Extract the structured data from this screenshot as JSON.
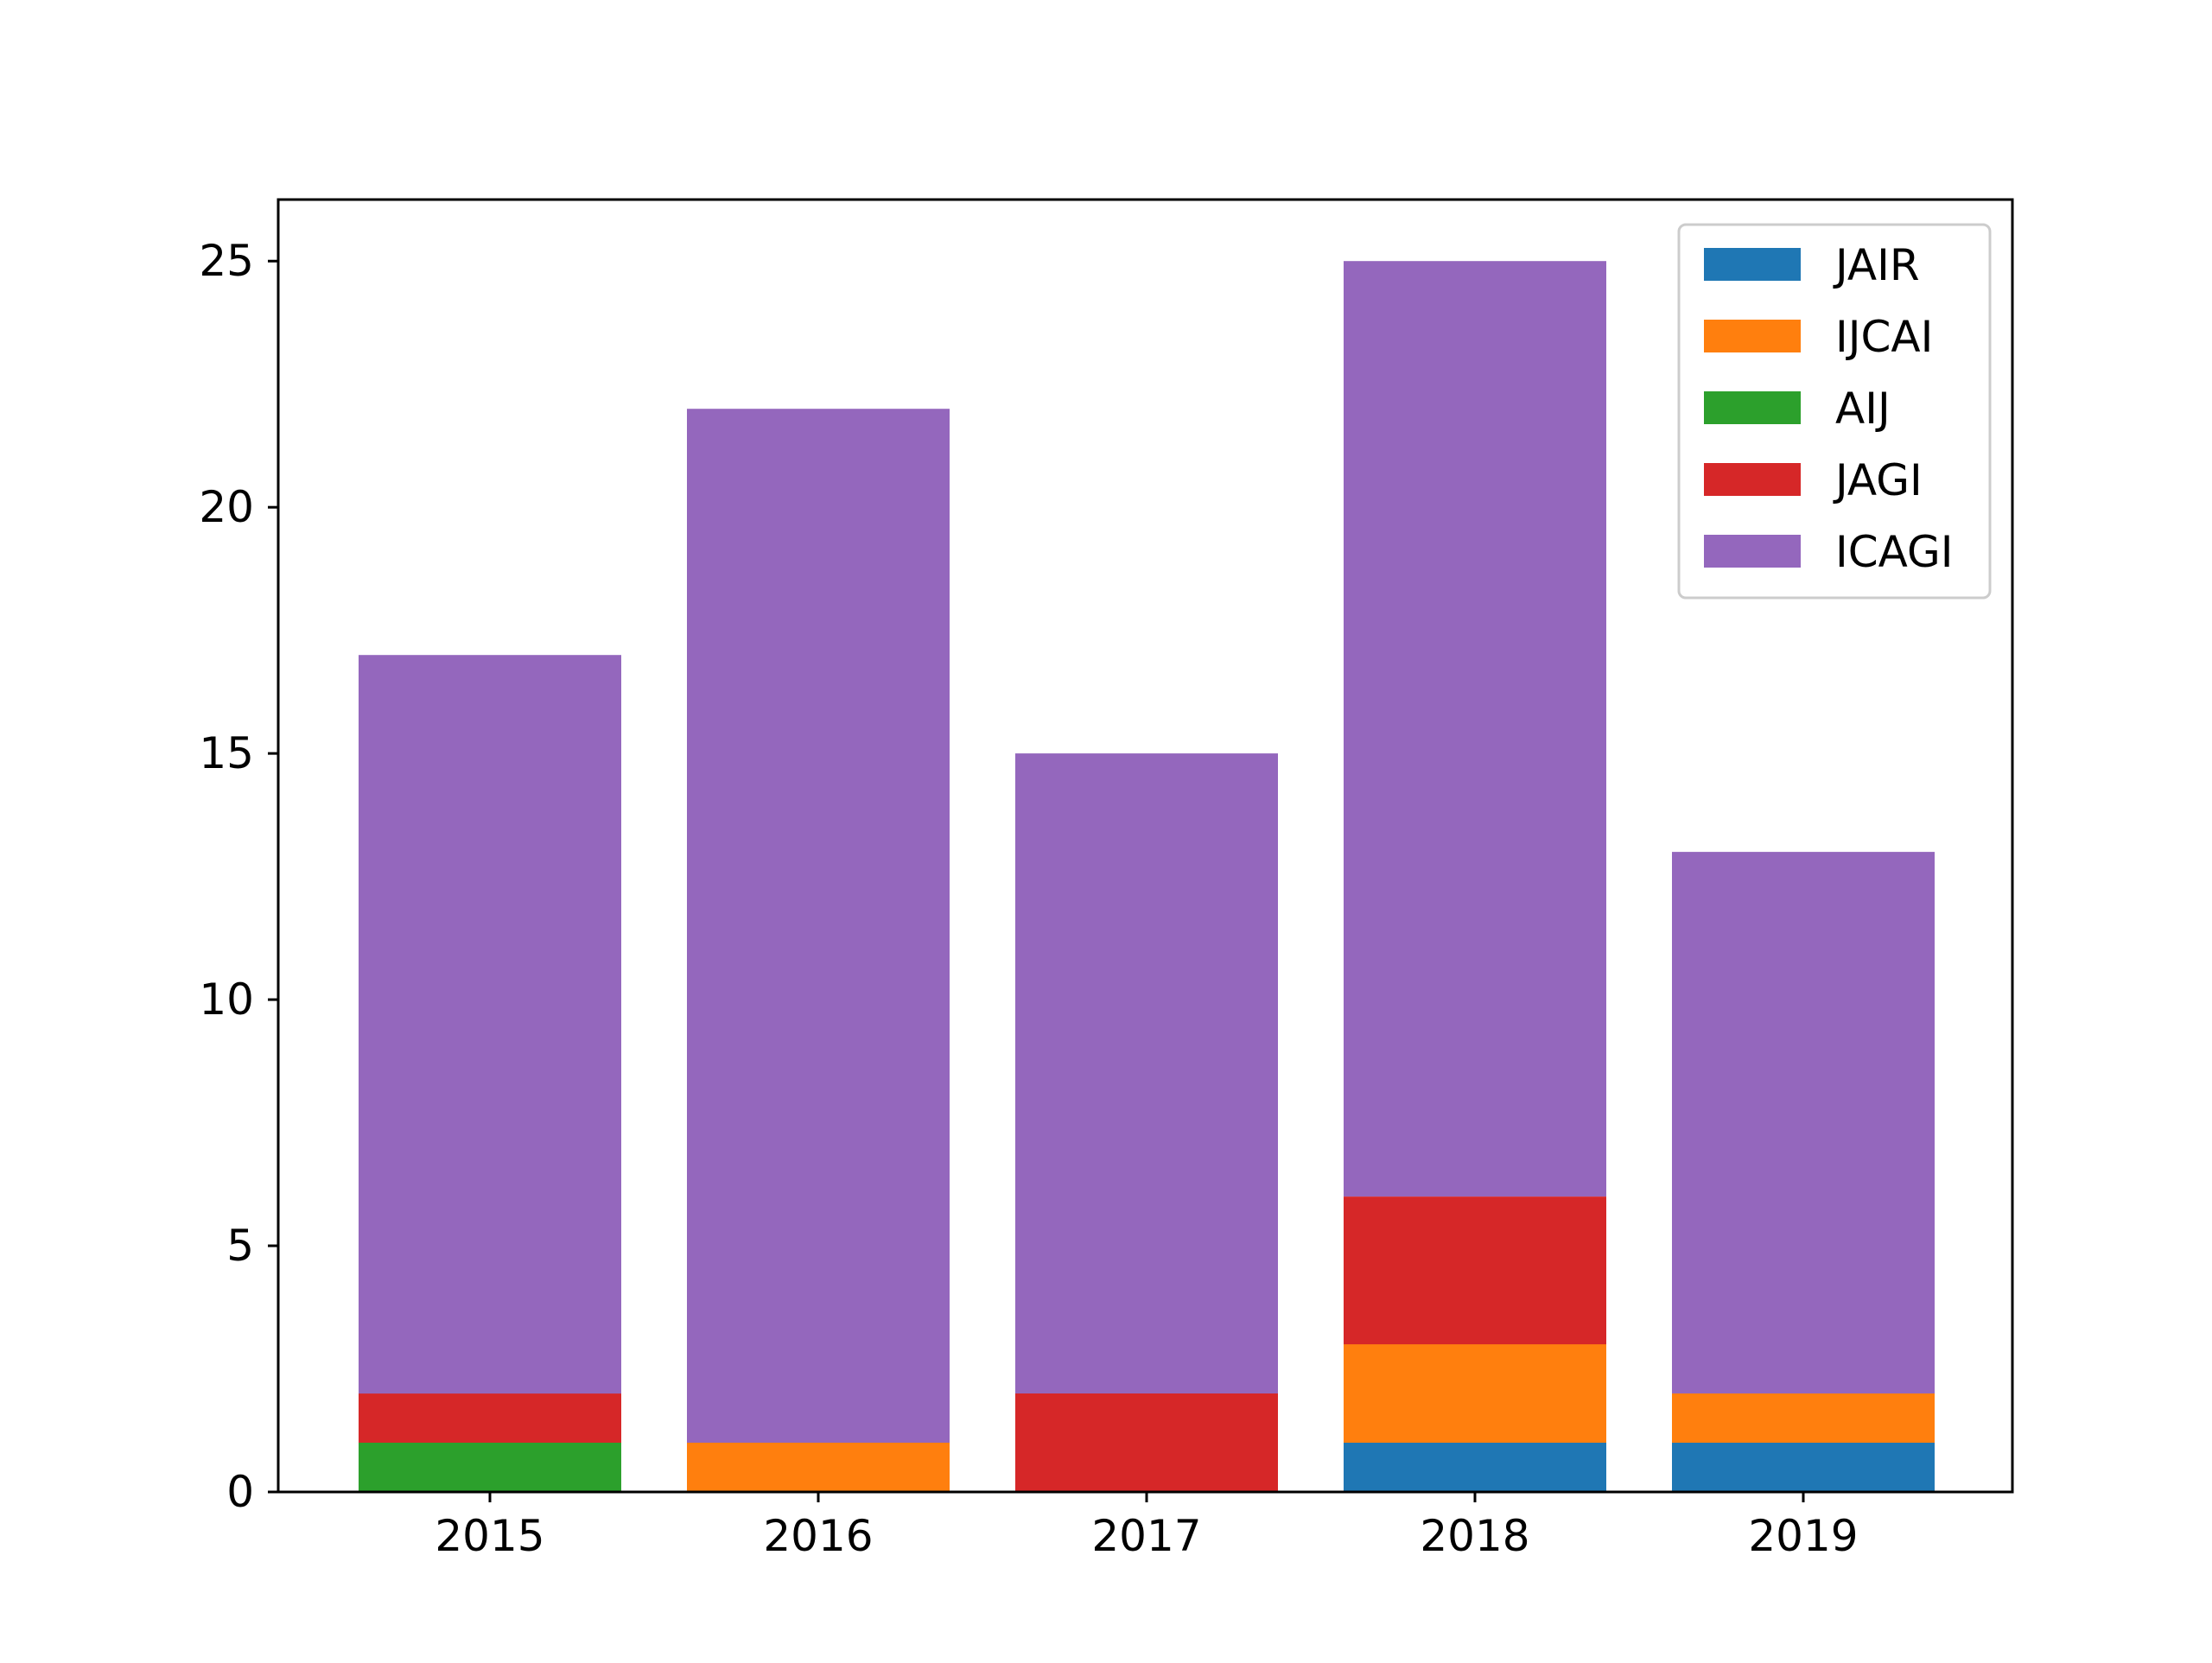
{
  "chart_data": {
    "type": "bar",
    "stacked": true,
    "title": "",
    "xlabel": "",
    "ylabel": "",
    "categories": [
      "2015",
      "2016",
      "2017",
      "2018",
      "2019"
    ],
    "ylim": [
      0,
      26.25
    ],
    "yticks": [
      0,
      5,
      10,
      15,
      20,
      25
    ],
    "grid": false,
    "legend_position": "top-right",
    "series": [
      {
        "name": "JAIR",
        "color": "#1f77b4",
        "values": [
          0,
          0,
          0,
          1,
          1
        ]
      },
      {
        "name": "IJCAI",
        "color": "#ff7f0e",
        "values": [
          0,
          1,
          0,
          2,
          1
        ]
      },
      {
        "name": "AIJ",
        "color": "#2ca02c",
        "values": [
          1,
          0,
          0,
          0,
          0
        ]
      },
      {
        "name": "JAGI",
        "color": "#d62728",
        "values": [
          1,
          0,
          2,
          3,
          0
        ]
      },
      {
        "name": "ICAGI",
        "color": "#9467bd",
        "values": [
          15,
          21,
          13,
          19,
          11
        ]
      }
    ]
  }
}
